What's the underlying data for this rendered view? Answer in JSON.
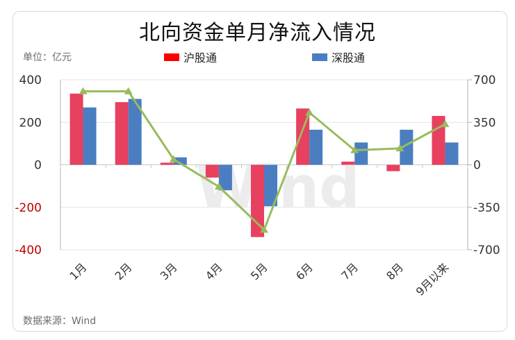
{
  "title": "北向资金单月净流入情况",
  "unit_label": "单位：亿元",
  "source_label": "数据来源：Wind",
  "watermark": "Wind",
  "colors": {
    "sh": "#e8405f",
    "sz": "#4a7ec0",
    "line": "#98bb5e",
    "neg_tick": "#c00000",
    "legend_sh": "#ff0000"
  },
  "chart_data": {
    "type": "bar",
    "title": "北向资金单月净流入情况",
    "categories": [
      "1月",
      "2月",
      "3月",
      "4月",
      "5月",
      "6月",
      "7月",
      "8月",
      "9月以来"
    ],
    "series": [
      {
        "name": "沪股通",
        "type": "bar",
        "axis": "left",
        "values": [
          335,
          295,
          10,
          -60,
          -340,
          265,
          15,
          -30,
          230
        ]
      },
      {
        "name": "深股通",
        "type": "bar",
        "axis": "left",
        "values": [
          270,
          310,
          35,
          -120,
          -195,
          165,
          105,
          165,
          105
        ]
      },
      {
        "name": "",
        "type": "line",
        "axis": "right",
        "values": [
          605,
          605,
          45,
          -180,
          -535,
          430,
          120,
          135,
          335
        ]
      }
    ],
    "y_left": {
      "ylim": [
        -400,
        400
      ],
      "ticks": [
        "400",
        "200",
        "0",
        "-200",
        "-400"
      ],
      "tick_values": [
        400,
        200,
        0,
        -200,
        -400
      ]
    },
    "y_right": {
      "ylim": [
        -700,
        700
      ],
      "ticks": [
        "700",
        "350",
        "0",
        "-350",
        "-700"
      ],
      "tick_values": [
        700,
        350,
        0,
        -350,
        -700
      ]
    },
    "grid": true,
    "legend": "top"
  }
}
